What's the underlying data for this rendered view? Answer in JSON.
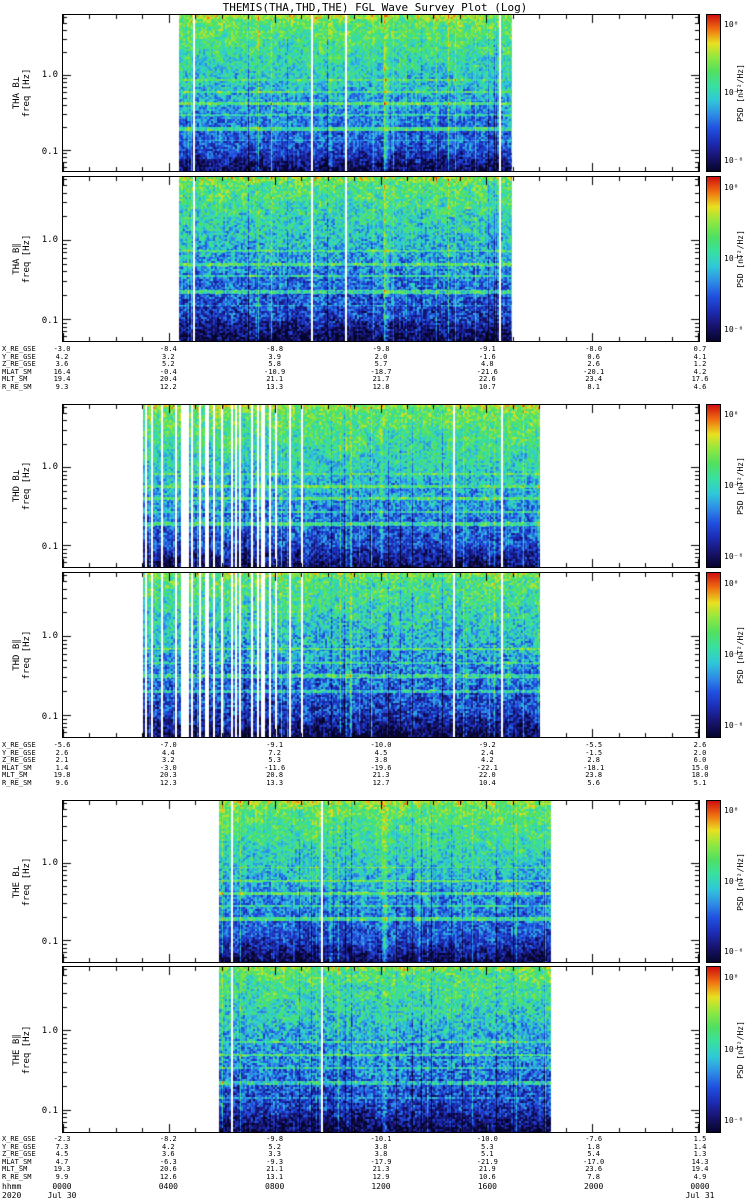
{
  "title": "THEMIS(THA,THD,THE) FGL Wave Survey Plot (Log)",
  "chart_data": {
    "type": "heatmap",
    "subtype": "multi-panel wave power spectrogram, 3 probes x 2 components",
    "time_axis": {
      "unit_label": "hhmm",
      "year": "2020",
      "date_left": "Jul 30",
      "date_right": "Jul 31",
      "hour_labels": [
        "0000",
        "0400",
        "0800",
        "1200",
        "1600",
        "2000",
        "0000"
      ]
    },
    "freq_axis": {
      "label": "freq [Hz]",
      "tick_labels": [
        "1.0",
        "0.1"
      ],
      "fmin": 0.054,
      "fmax": 6.3,
      "scale": "log"
    },
    "colorbar": {
      "label": "PSD [nT²/Hz]",
      "ticks": [
        "10⁰",
        "10⁻³",
        "10⁻⁶"
      ],
      "scale": "log"
    },
    "colormap": [
      "#06052c",
      "#18136e",
      "#1c2cb4",
      "#2050e0",
      "#2e8ee6",
      "#30c8d8",
      "#38e0a0",
      "#50e060",
      "#90e840",
      "#e8e020",
      "#f07010",
      "#cf1010"
    ],
    "spectrograms": [
      {
        "id": "tha-bperp",
        "probe": "THA",
        "name": "THA B⊥",
        "seed": 11,
        "col_seed": 101,
        "extent": [
          0.182,
          0.705
        ],
        "top_val": 0.67,
        "bot_val": 0.18,
        "noise": 0.26,
        "bands": [
          [
            0.415,
            0.14,
            0.007
          ],
          [
            0.49,
            0.18,
            0.006
          ],
          [
            0.565,
            0.22,
            0.008
          ],
          [
            0.64,
            0.16,
            0.006
          ],
          [
            0.725,
            0.26,
            0.013
          ],
          [
            0.8,
            0.1,
            0.005
          ]
        ],
        "events": [
          [
            0.42,
            0.005,
            0.1
          ],
          [
            0.507,
            0.006,
            0.2
          ]
        ],
        "gap_zones": [
          [
            0.182,
            0.705,
            0.03
          ]
        ]
      },
      {
        "id": "tha-bpar",
        "probe": "THA",
        "name": "THA B∥",
        "seed": 12,
        "col_seed": 101,
        "extent": [
          0.182,
          0.705
        ],
        "top_val": 0.64,
        "bot_val": 0.15,
        "noise": 0.3,
        "bands": [
          [
            0.45,
            0.16,
            0.006
          ],
          [
            0.53,
            0.22,
            0.007
          ],
          [
            0.6,
            0.18,
            0.006
          ],
          [
            0.7,
            0.24,
            0.012
          ],
          [
            0.78,
            0.12,
            0.005
          ]
        ],
        "events": [
          [
            0.507,
            0.006,
            0.16
          ]
        ],
        "gap_zones": [
          [
            0.182,
            0.705,
            0.03
          ]
        ]
      },
      {
        "id": "thd-bperp",
        "probe": "THD",
        "name": "THD B⊥",
        "seed": 21,
        "col_seed": 201,
        "extent": [
          0.122,
          0.749
        ],
        "top_val": 0.67,
        "bot_val": 0.18,
        "noise": 0.27,
        "bands": [
          [
            0.42,
            0.16,
            0.006
          ],
          [
            0.5,
            0.2,
            0.007
          ],
          [
            0.575,
            0.22,
            0.008
          ],
          [
            0.655,
            0.18,
            0.006
          ],
          [
            0.73,
            0.24,
            0.012
          ]
        ],
        "events": [
          [
            0.5,
            0.004,
            0.12
          ]
        ],
        "gap_zones": [
          [
            0.122,
            0.34,
            0.45
          ],
          [
            0.34,
            0.42,
            0.1
          ],
          [
            0.42,
            0.749,
            0.02
          ]
        ]
      },
      {
        "id": "thd-bpar",
        "probe": "THD",
        "name": "THD B∥",
        "seed": 22,
        "col_seed": 201,
        "extent": [
          0.122,
          0.749
        ],
        "top_val": 0.63,
        "bot_val": 0.15,
        "noise": 0.31,
        "bands": [
          [
            0.46,
            0.2,
            0.007
          ],
          [
            0.545,
            0.16,
            0.006
          ],
          [
            0.625,
            0.22,
            0.01
          ],
          [
            0.72,
            0.2,
            0.01
          ]
        ],
        "events": [],
        "gap_zones": [
          [
            0.122,
            0.34,
            0.45
          ],
          [
            0.34,
            0.42,
            0.1
          ],
          [
            0.42,
            0.749,
            0.02
          ]
        ]
      },
      {
        "id": "the-bperp",
        "probe": "THE",
        "name": "THE B⊥",
        "seed": 31,
        "col_seed": 301,
        "extent": [
          0.245,
          0.765
        ],
        "top_val": 0.67,
        "bot_val": 0.18,
        "noise": 0.26,
        "bands": [
          [
            0.41,
            0.15,
            0.006
          ],
          [
            0.495,
            0.2,
            0.007
          ],
          [
            0.57,
            0.24,
            0.009
          ],
          [
            0.65,
            0.16,
            0.006
          ],
          [
            0.73,
            0.26,
            0.013
          ]
        ],
        "events": [
          [
            0.42,
            0.005,
            0.16
          ],
          [
            0.505,
            0.006,
            0.22
          ],
          [
            0.56,
            0.004,
            0.12
          ]
        ],
        "gap_zones": [
          [
            0.245,
            0.765,
            0.02
          ]
        ]
      },
      {
        "id": "the-bpar",
        "probe": "THE",
        "name": "THE B∥",
        "seed": 32,
        "col_seed": 301,
        "extent": [
          0.245,
          0.765
        ],
        "top_val": 0.63,
        "bot_val": 0.15,
        "noise": 0.3,
        "bands": [
          [
            0.45,
            0.18,
            0.006
          ],
          [
            0.53,
            0.22,
            0.008
          ],
          [
            0.61,
            0.16,
            0.006
          ],
          [
            0.7,
            0.22,
            0.011
          ],
          [
            0.79,
            0.12,
            0.005
          ]
        ],
        "events": [
          [
            0.505,
            0.005,
            0.14
          ]
        ],
        "gap_zones": [
          [
            0.245,
            0.765,
            0.02
          ]
        ]
      }
    ],
    "ephemeris": {
      "labels": [
        "X_RE_GSE",
        "Y_RE_GSE",
        "Z_RE_GSE",
        "MLAT_SM",
        "MLT_SM",
        "R_RE_SM"
      ],
      "tables_order": [
        "THA",
        "THD",
        "THE"
      ],
      "tables": {
        "THA": [
          [
            "-3.0",
            "-8.4",
            "-8.8",
            "-9.8",
            "-9.1",
            "-8.0",
            "0.7"
          ],
          [
            "4.2",
            "3.2",
            "3.9",
            "2.0",
            "-1.6",
            "0.6",
            "4.1"
          ],
          [
            "3.6",
            "5.2",
            "5.8",
            "5.7",
            "4.8",
            "2.6",
            "1.2"
          ],
          [
            "16.4",
            "-0.4",
            "-10.9",
            "-18.7",
            "-21.6",
            "-20.1",
            "4.2"
          ],
          [
            "19.4",
            "20.4",
            "21.1",
            "21.7",
            "22.6",
            "23.4",
            "17.6"
          ],
          [
            "9.3",
            "12.2",
            "13.3",
            "12.8",
            "10.7",
            "8.1",
            "4.6"
          ]
        ],
        "THD": [
          [
            "-5.6",
            "-7.0",
            "-9.1",
            "-10.0",
            "-9.2",
            "-5.5",
            "2.6"
          ],
          [
            "2.6",
            "4.4",
            "7.2",
            "4.5",
            "2.4",
            "-1.5",
            "2.0"
          ],
          [
            "2.1",
            "3.2",
            "5.3",
            "3.8",
            "4.2",
            "2.8",
            "6.0"
          ],
          [
            "1.4",
            "-3.0",
            "-11.6",
            "-19.6",
            "-22.1",
            "-18.1",
            "15.0"
          ],
          [
            "19.8",
            "20.3",
            "20.8",
            "21.3",
            "22.0",
            "23.8",
            "18.0"
          ],
          [
            "9.6",
            "12.3",
            "13.3",
            "12.7",
            "10.4",
            "5.6",
            "5.1"
          ]
        ],
        "THE": [
          [
            "-2.3",
            "-8.2",
            "-9.8",
            "-10.1",
            "-10.0",
            "-7.6",
            "1.5"
          ],
          [
            "7.3",
            "4.2",
            "5.2",
            "3.8",
            "5.3",
            "1.8",
            "1.4"
          ],
          [
            "4.5",
            "3.6",
            "3.3",
            "3.8",
            "5.1",
            "5.4",
            "1.3"
          ],
          [
            "4.7",
            "-6.3",
            "-9.3",
            "-17.9",
            "-21.9",
            "-17.0",
            "14.3"
          ],
          [
            "19.3",
            "20.6",
            "21.1",
            "21.3",
            "21.9",
            "23.6",
            "19.4"
          ],
          [
            "9.9",
            "12.6",
            "13.1",
            "12.9",
            "10.6",
            "7.8",
            "4.9"
          ]
        ]
      }
    }
  }
}
